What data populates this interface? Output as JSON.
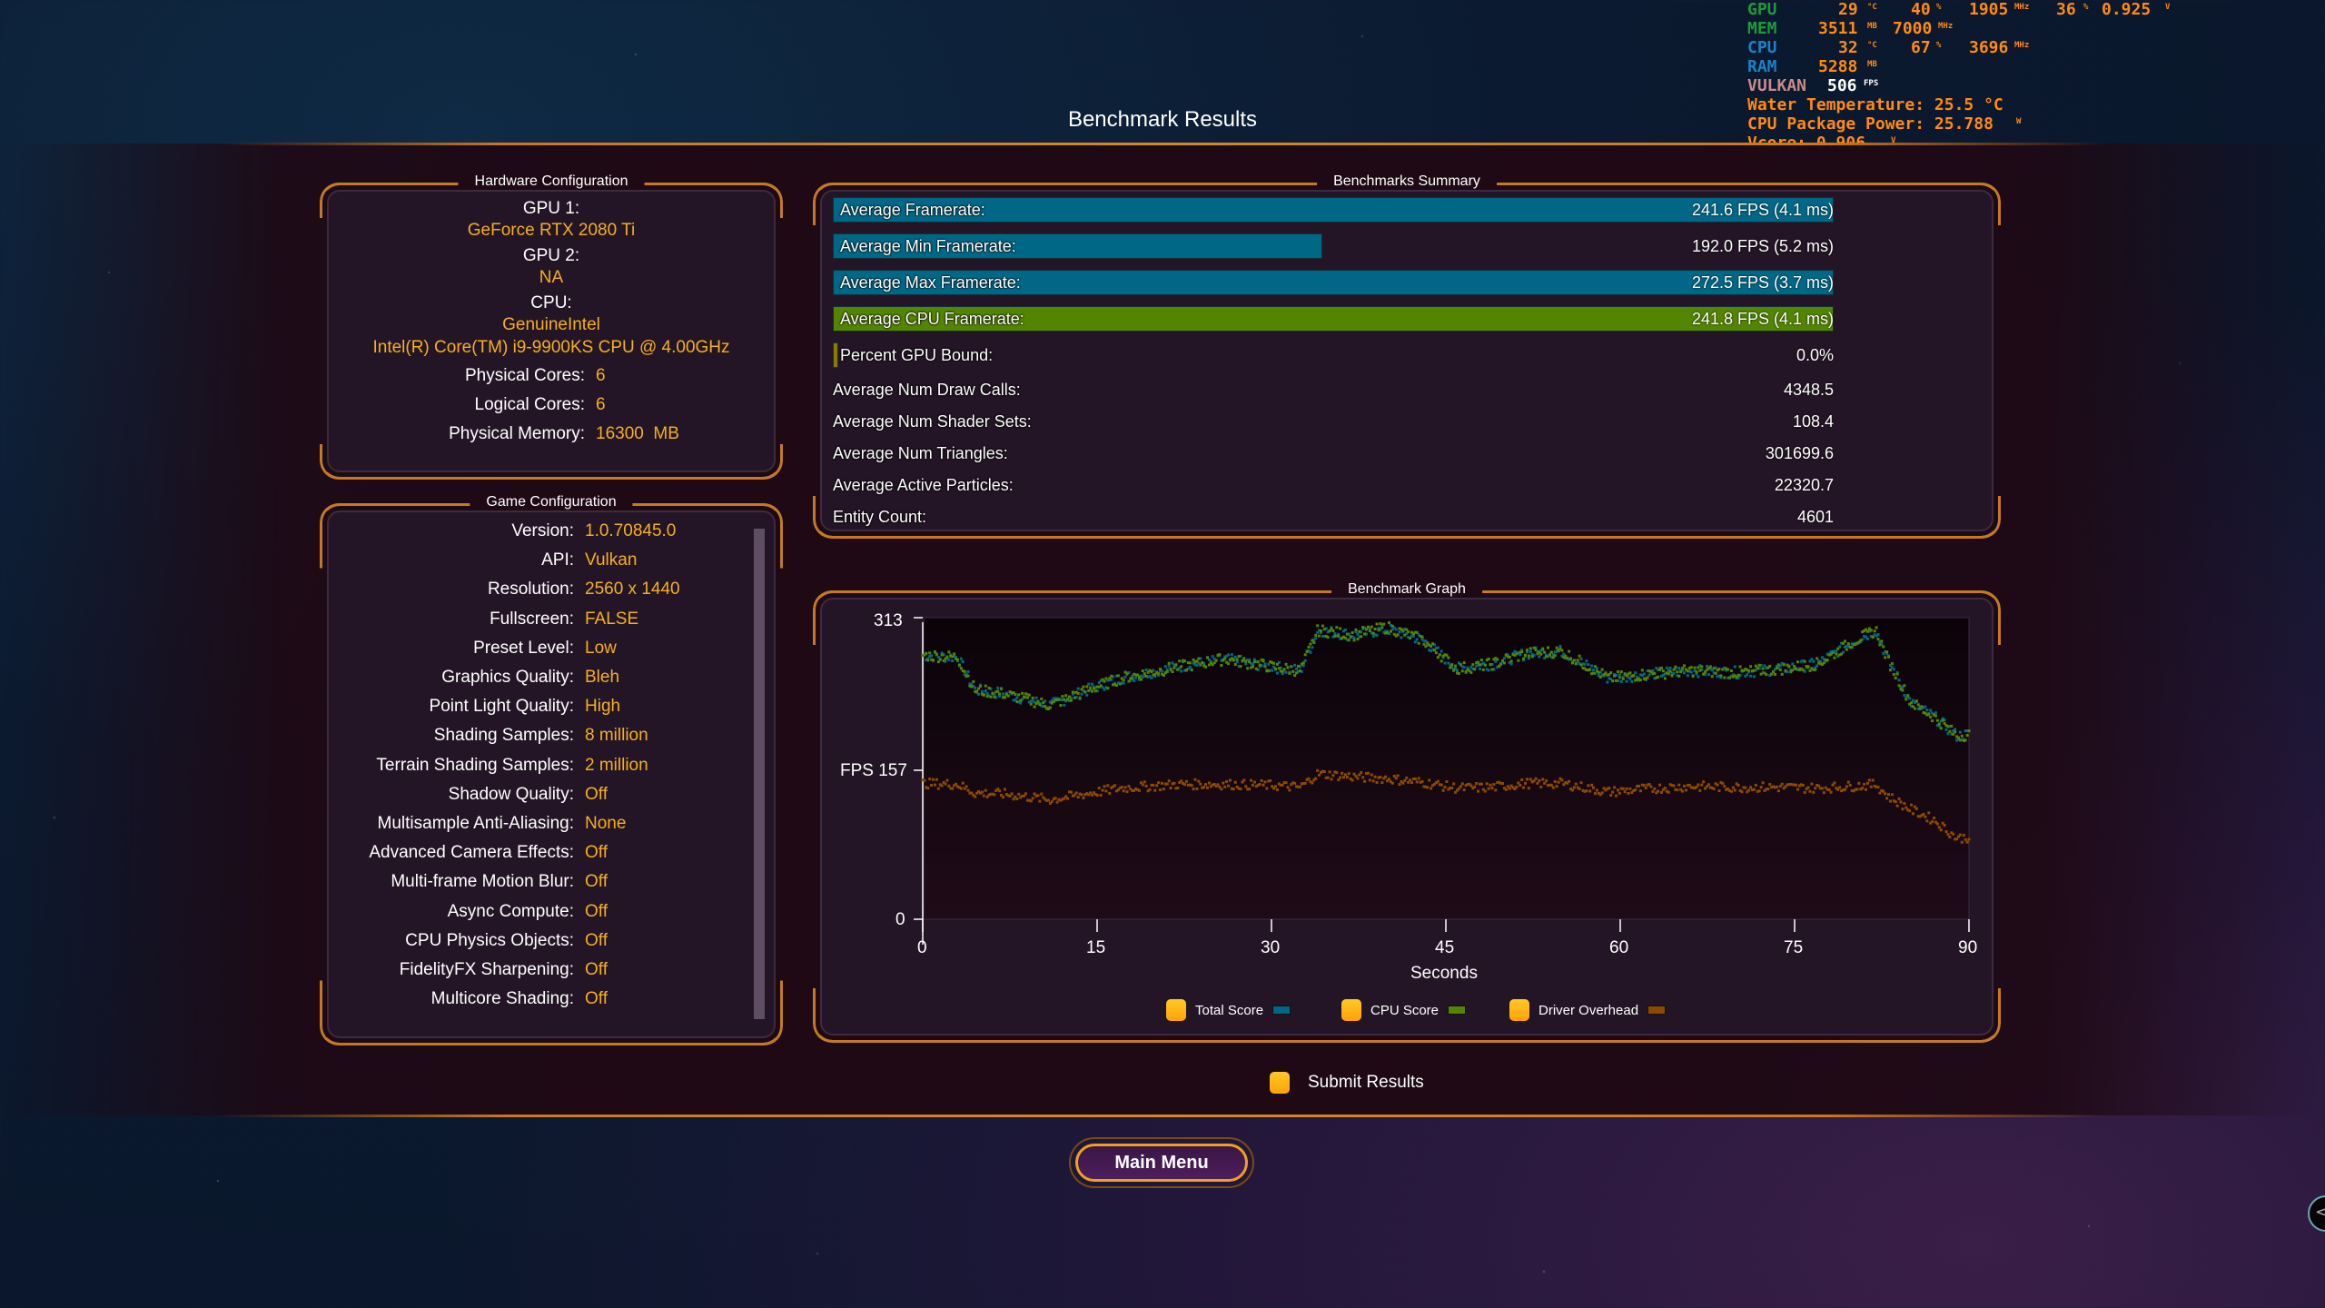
{
  "page": {
    "title": "Benchmark Results"
  },
  "osd": {
    "gpu": {
      "label": "GPU",
      "temp": "29",
      "temp_unit": "°C",
      "load": "40",
      "load_unit": "%",
      "clock": "1905",
      "clock_unit": "MHz",
      "fan": "36",
      "fan_unit": "%",
      "volt": "0.925",
      "volt_unit": "V"
    },
    "mem": {
      "label": "MEM",
      "used": "3511",
      "used_unit": "MB",
      "clock": "7000",
      "clock_unit": "MHz"
    },
    "cpu": {
      "label": "CPU",
      "temp": "32",
      "temp_unit": "°C",
      "load": "67",
      "load_unit": "%",
      "clock": "3696",
      "clock_unit": "MHz"
    },
    "ram": {
      "label": "RAM",
      "used": "5288",
      "used_unit": "MB"
    },
    "api": {
      "label": "VULKAN",
      "fps": "506",
      "fps_unit": "FPS"
    },
    "water_temp": "Water Temperature: 25.5 °C",
    "cpu_power": "CPU Package Power: 25.788",
    "cpu_power_unit": "W",
    "vcore": "Vcore: 0.906",
    "vcore_unit": "V"
  },
  "hardware": {
    "title": "Hardware Configuration",
    "gpu1_label": "GPU 1:",
    "gpu1_value": "GeForce RTX 2080 Ti",
    "gpu2_label": "GPU 2:",
    "gpu2_value": "NA",
    "cpu_label": "CPU:",
    "cpu_vendor": "GenuineIntel",
    "cpu_model": "Intel(R) Core(TM) i9-9900KS CPU @ 4.00GHz",
    "rows": [
      {
        "label": "Physical Cores:",
        "value": "6"
      },
      {
        "label": "Logical Cores:",
        "value": "6"
      },
      {
        "label": "Physical Memory:",
        "value": "16300  MB"
      }
    ]
  },
  "game": {
    "title": "Game Configuration",
    "rows": [
      {
        "label": "Version:",
        "value": "1.0.70845.0"
      },
      {
        "label": "API:",
        "value": "Vulkan"
      },
      {
        "label": "Resolution:",
        "value": "2560 x 1440"
      },
      {
        "label": "Fullscreen:",
        "value": "FALSE"
      },
      {
        "label": "Preset Level:",
        "value": "Low"
      },
      {
        "label": "Graphics Quality:",
        "value": "Bleh"
      },
      {
        "label": "Point Light Quality:",
        "value": "High"
      },
      {
        "label": "Shading Samples:",
        "value": "8 million"
      },
      {
        "label": "Terrain Shading Samples:",
        "value": "2 million"
      },
      {
        "label": "Shadow Quality:",
        "value": "Off"
      },
      {
        "label": "Multisample Anti-Aliasing:",
        "value": "None"
      },
      {
        "label": "Advanced Camera Effects:",
        "value": "Off"
      },
      {
        "label": "Multi-frame Motion Blur:",
        "value": "Off"
      },
      {
        "label": "Async Compute:",
        "value": "Off"
      },
      {
        "label": "CPU Physics Objects:",
        "value": "Off"
      },
      {
        "label": "FidelityFX Sharpening:",
        "value": "Off"
      },
      {
        "label": "Multicore Shading:",
        "value": "Off"
      }
    ]
  },
  "summary": {
    "title": "Benchmarks Summary",
    "bars": [
      {
        "label": "Average Framerate:",
        "value": "241.6 FPS (4.1 ms)",
        "fill_pct": 100,
        "color": "#006886"
      },
      {
        "label": "Average Min Framerate:",
        "value": "192.0 FPS (5.2 ms)",
        "fill_pct": 48.9,
        "color": "#006886"
      },
      {
        "label": "Average Max Framerate:",
        "value": "272.5 FPS (3.7 ms)",
        "fill_pct": 100,
        "color": "#006886"
      },
      {
        "label": "Average CPU Framerate:",
        "value": "241.8 FPS (4.1 ms)",
        "fill_pct": 100,
        "color": "#538500"
      },
      {
        "label": "Percent GPU Bound:",
        "value": "0.0%",
        "fill_pct": 0.6,
        "color": "#8c7a00"
      }
    ],
    "stats": [
      {
        "label": "Average Num Draw Calls:",
        "value": "4348.5"
      },
      {
        "label": "Average Num Shader Sets:",
        "value": "108.4"
      },
      {
        "label": "Average Num Triangles:",
        "value": "301699.6"
      },
      {
        "label": "Average Active Particles:",
        "value": "22320.7"
      },
      {
        "label": "Entity Count:",
        "value": "4601"
      }
    ]
  },
  "graph": {
    "title": "Benchmark Graph",
    "y_ticks": [
      "313",
      "FPS 157",
      "0"
    ],
    "x_ticks": [
      "0",
      "15",
      "30",
      "45",
      "60",
      "75",
      "90"
    ],
    "x_label": "Seconds",
    "legend": [
      {
        "label": "Total Score",
        "color": "#006886"
      },
      {
        "label": "CPU Score",
        "color": "#538500"
      },
      {
        "label": "Driver Overhead",
        "color": "#8c4a00"
      }
    ]
  },
  "chart_data": {
    "type": "scatter",
    "title": "Benchmark Graph",
    "xlabel": "Seconds",
    "ylabel": "FPS",
    "xlim": [
      0,
      90
    ],
    "ylim": [
      0,
      313
    ],
    "x_ticks": [
      0,
      15,
      30,
      45,
      60,
      75,
      90
    ],
    "y_ticks": [
      0,
      157,
      313
    ],
    "grid": false,
    "legend_position": "bottom",
    "x": [
      0,
      3,
      4.5,
      7,
      11,
      14,
      17,
      22,
      26,
      30,
      32.5,
      34,
      37,
      40,
      43,
      46,
      49,
      52,
      55,
      59,
      62,
      66,
      70,
      74,
      77,
      80,
      82,
      83,
      85,
      87,
      89,
      90
    ],
    "series": [
      {
        "name": "Total Score",
        "values": [
          274,
          272,
          238,
          234,
          222,
          237,
          250,
          262,
          270,
          262,
          258,
          300,
          295,
          301,
          290,
          260,
          265,
          276,
          278,
          250,
          254,
          258,
          256,
          260,
          265,
          288,
          300,
          270,
          225,
          210,
          190,
          192
        ]
      },
      {
        "name": "CPU Score",
        "values": [
          274,
          272,
          238,
          234,
          222,
          237,
          250,
          262,
          270,
          262,
          258,
          300,
          295,
          303,
          290,
          260,
          265,
          276,
          278,
          250,
          254,
          258,
          256,
          260,
          265,
          288,
          300,
          270,
          225,
          210,
          190,
          192
        ]
      },
      {
        "name": "Driver Overhead",
        "values": [
          141,
          140,
          131,
          130,
          124,
          130,
          136,
          140,
          140,
          139,
          137,
          151,
          148,
          146,
          142,
          136,
          137,
          141,
          141,
          132,
          135,
          138,
          137,
          137,
          136,
          138,
          140,
          128,
          114,
          103,
          84,
          85
        ]
      }
    ]
  },
  "footer": {
    "submit_label": "Submit Results",
    "main_menu_label": "Main Menu",
    "side_toggle_glyph": "<"
  }
}
